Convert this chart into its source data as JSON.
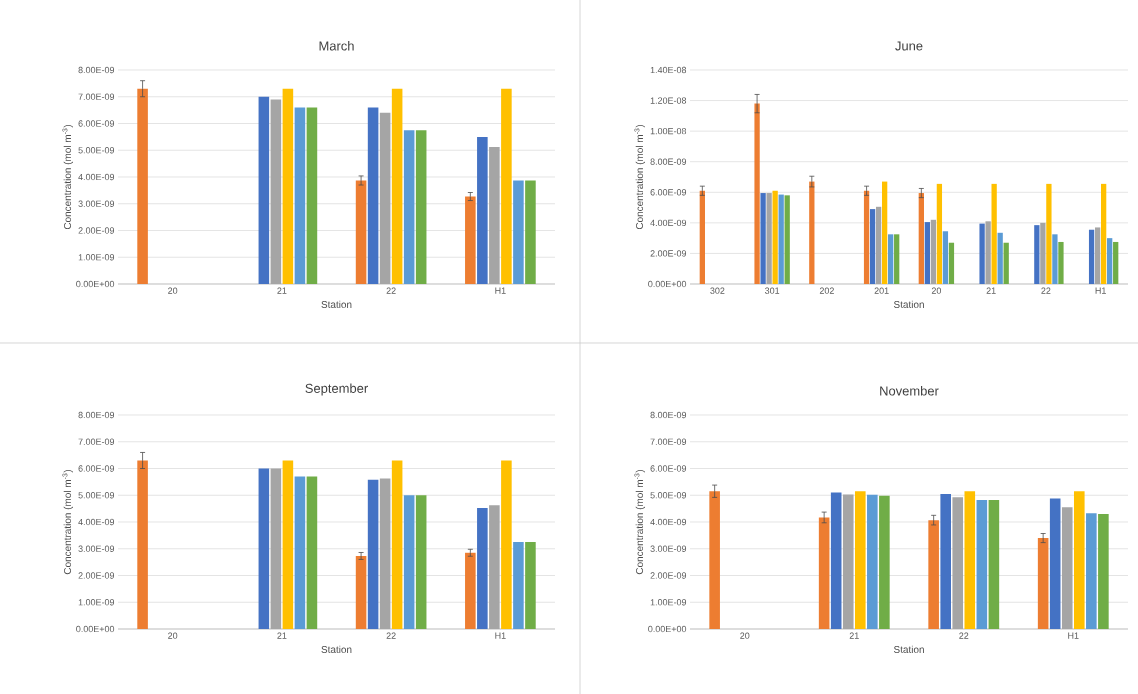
{
  "chart_data": [
    {
      "type": "bar",
      "title": "March",
      "xlabel": "Station",
      "ylabel": "Concentration (mol m$^{-3}$)",
      "grid": "y",
      "categories": [
        "20",
        "21",
        "22",
        "H1"
      ],
      "ylim": [
        0,
        8e-09
      ],
      "yticks": [
        {
          "value": 0,
          "label": "0.00E+00"
        },
        {
          "value": 1e-09,
          "label": "1.00E-09"
        },
        {
          "value": 2e-09,
          "label": "2.00E-09"
        },
        {
          "value": 3e-09,
          "label": "3.00E-09"
        },
        {
          "value": 4e-09,
          "label": "4.00E-09"
        },
        {
          "value": 5e-09,
          "label": "5.00E-09"
        },
        {
          "value": 6e-09,
          "label": "6.00E-09"
        },
        {
          "value": 7e-09,
          "label": "7.00E-09"
        },
        {
          "value": 8e-09,
          "label": "8.00E-09"
        }
      ],
      "series": [
        {
          "color": "#ed7d31",
          "values": [
            7.3e-09,
            null,
            3.87e-09,
            3.27e-09
          ],
          "errors": [
            3e-10,
            null,
            1.7e-10,
            1.5e-10
          ]
        },
        {
          "color": "#4472c4",
          "values": [
            null,
            7e-09,
            6.6e-09,
            5.5e-09
          ]
        },
        {
          "color": "#a5a5a5",
          "values": [
            null,
            6.9e-09,
            6.4e-09,
            5.12e-09
          ]
        },
        {
          "color": "#ffc000",
          "values": [
            null,
            7.3e-09,
            7.3e-09,
            7.3e-09
          ]
        },
        {
          "color": "#5b9bd5",
          "values": [
            null,
            6.6e-09,
            5.75e-09,
            3.87e-09
          ]
        },
        {
          "color": "#70ad47",
          "values": [
            null,
            6.6e-09,
            5.75e-09,
            3.87e-09
          ]
        }
      ]
    },
    {
      "type": "bar",
      "title": "June",
      "xlabel": "Station",
      "ylabel": "Concentration (mol m$^{-3}$)",
      "grid": "y",
      "categories": [
        "302",
        "301",
        "202",
        "201",
        "20",
        "21",
        "22",
        "H1"
      ],
      "ylim": [
        0,
        1.4e-08
      ],
      "yticks": [
        {
          "value": 0,
          "label": "0.00E+00"
        },
        {
          "value": 2e-09,
          "label": "2.00E-09"
        },
        {
          "value": 4e-09,
          "label": "4.00E-09"
        },
        {
          "value": 6e-09,
          "label": "6.00E-09"
        },
        {
          "value": 8e-09,
          "label": "8.00E-09"
        },
        {
          "value": 1e-08,
          "label": "1.00E-08"
        },
        {
          "value": 1.2e-08,
          "label": "1.20E-08"
        },
        {
          "value": 1.4e-08,
          "label": "1.40E-08"
        }
      ],
      "series": [
        {
          "color": "#ed7d31",
          "values": [
            6.1e-09,
            1.18e-08,
            6.7e-09,
            6.1e-09,
            5.95e-09,
            null,
            null,
            null
          ],
          "errors": [
            3e-10,
            6e-10,
            3.5e-10,
            3e-10,
            3e-10,
            null,
            null,
            null
          ]
        },
        {
          "color": "#4472c4",
          "values": [
            null,
            5.95e-09,
            null,
            4.9e-09,
            4.05e-09,
            3.95e-09,
            3.85e-09,
            3.55e-09
          ]
        },
        {
          "color": "#a5a5a5",
          "values": [
            null,
            5.95e-09,
            null,
            5.05e-09,
            4.2e-09,
            4.1e-09,
            4e-09,
            3.7e-09
          ]
        },
        {
          "color": "#ffc000",
          "values": [
            null,
            6.1e-09,
            null,
            6.7e-09,
            6.55e-09,
            6.55e-09,
            6.55e-09,
            6.55e-09
          ]
        },
        {
          "color": "#5b9bd5",
          "values": [
            null,
            5.85e-09,
            null,
            3.25e-09,
            3.45e-09,
            3.35e-09,
            3.25e-09,
            3e-09
          ]
        },
        {
          "color": "#70ad47",
          "values": [
            null,
            5.8e-09,
            null,
            3.25e-09,
            2.7e-09,
            2.7e-09,
            2.75e-09,
            2.75e-09
          ]
        }
      ]
    },
    {
      "type": "bar",
      "title": "September",
      "xlabel": "Station",
      "ylabel": "Concentration (mol m$^{-3}$)",
      "grid": "y",
      "categories": [
        "20",
        "21",
        "22",
        "H1"
      ],
      "ylim": [
        0,
        8e-09
      ],
      "yticks": [
        {
          "value": 0,
          "label": "0.00E+00"
        },
        {
          "value": 1e-09,
          "label": "1.00E-09"
        },
        {
          "value": 2e-09,
          "label": "2.00E-09"
        },
        {
          "value": 3e-09,
          "label": "3.00E-09"
        },
        {
          "value": 4e-09,
          "label": "4.00E-09"
        },
        {
          "value": 5e-09,
          "label": "5.00E-09"
        },
        {
          "value": 6e-09,
          "label": "6.00E-09"
        },
        {
          "value": 7e-09,
          "label": "7.00E-09"
        },
        {
          "value": 8e-09,
          "label": "8.00E-09"
        }
      ],
      "series": [
        {
          "color": "#ed7d31",
          "values": [
            6.3e-09,
            null,
            2.73e-09,
            2.85e-09
          ],
          "errors": [
            3e-10,
            null,
            1.3e-10,
            1.3e-10
          ]
        },
        {
          "color": "#4472c4",
          "values": [
            null,
            6e-09,
            5.58e-09,
            4.52e-09
          ]
        },
        {
          "color": "#a5a5a5",
          "values": [
            null,
            6e-09,
            5.63e-09,
            4.63e-09
          ]
        },
        {
          "color": "#ffc000",
          "values": [
            null,
            6.3e-09,
            6.3e-09,
            6.3e-09
          ]
        },
        {
          "color": "#5b9bd5",
          "values": [
            null,
            5.7e-09,
            5e-09,
            3.25e-09
          ]
        },
        {
          "color": "#70ad47",
          "values": [
            null,
            5.7e-09,
            5e-09,
            3.25e-09
          ]
        }
      ]
    },
    {
      "type": "bar",
      "title": "November",
      "xlabel": "Station",
      "ylabel": "Concentration (mol m$^{-3}$)",
      "grid": "y",
      "categories": [
        "20",
        "21",
        "22",
        "H1"
      ],
      "ylim": [
        0,
        8e-09
      ],
      "yticks": [
        {
          "value": 0,
          "label": "0.00E+00"
        },
        {
          "value": 1e-09,
          "label": "1.00E-09"
        },
        {
          "value": 2e-09,
          "label": "2.00E-09"
        },
        {
          "value": 3e-09,
          "label": "3.00E-09"
        },
        {
          "value": 4e-09,
          "label": "4.00E-09"
        },
        {
          "value": 5e-09,
          "label": "5.00E-09"
        },
        {
          "value": 6e-09,
          "label": "6.00E-09"
        },
        {
          "value": 7e-09,
          "label": "7.00E-09"
        },
        {
          "value": 8e-09,
          "label": "8.00E-09"
        }
      ],
      "series": [
        {
          "color": "#ed7d31",
          "values": [
            5.15e-09,
            4.17e-09,
            4.07e-09,
            3.4e-09
          ],
          "errors": [
            2.3e-10,
            2e-10,
            1.8e-10,
            1.7e-10
          ]
        },
        {
          "color": "#4472c4",
          "values": [
            null,
            5.1e-09,
            5.05e-09,
            4.88e-09
          ]
        },
        {
          "color": "#a5a5a5",
          "values": [
            null,
            5.03e-09,
            4.93e-09,
            4.55e-09
          ]
        },
        {
          "color": "#ffc000",
          "values": [
            null,
            5.15e-09,
            5.15e-09,
            5.15e-09
          ]
        },
        {
          "color": "#5b9bd5",
          "values": [
            null,
            5.02e-09,
            4.82e-09,
            4.33e-09
          ]
        },
        {
          "color": "#70ad47",
          "values": [
            null,
            4.98e-09,
            4.82e-09,
            4.3e-09
          ]
        }
      ]
    }
  ]
}
